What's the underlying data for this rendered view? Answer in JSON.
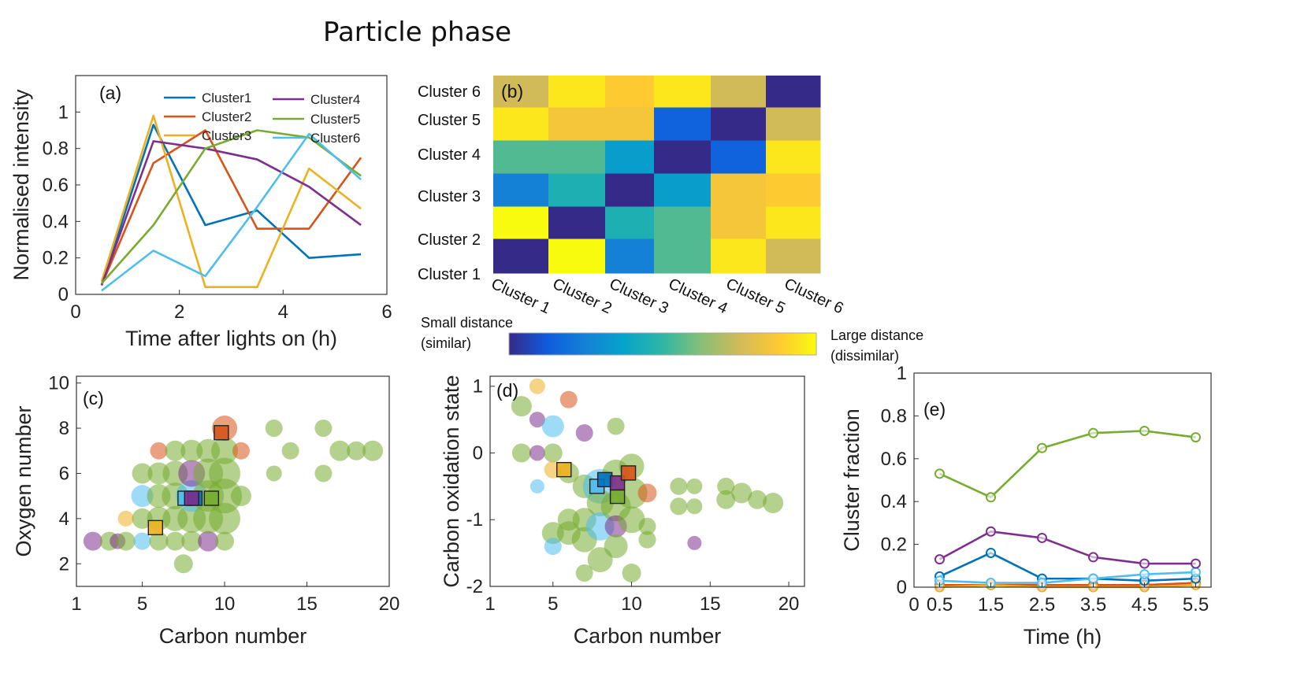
{
  "figure_title": "Particle phase",
  "colors": {
    "cluster1": "#0072BD",
    "cluster2": "#D95319",
    "cluster3": "#EDB120",
    "cluster4": "#7E2F8E",
    "cluster5": "#77AC30",
    "cluster6": "#4DBEEE",
    "parula": [
      "#352A87",
      "#0F5CDD",
      "#1481D6",
      "#06A4CA",
      "#2EB7A4",
      "#87BF77",
      "#D1BB59",
      "#FEC832",
      "#F9FB0E"
    ]
  },
  "chart_data": [
    {
      "id": "a",
      "panel_label": "(a)",
      "type": "line",
      "title": "",
      "xlabel": "Time after lights on (h)",
      "ylabel": "Normalised intensity",
      "xlim": [
        0,
        6
      ],
      "ylim": [
        0,
        1.2
      ],
      "xticks": [
        0,
        2,
        4,
        6
      ],
      "yticks": [
        0,
        0.2,
        0.4,
        0.6,
        0.8,
        1
      ],
      "ytick_labels": [
        "0",
        "0.2",
        "0.4",
        "0.6",
        "0.8",
        "1"
      ],
      "legend": "top-right",
      "x": [
        0.5,
        1.5,
        2.5,
        3.5,
        4.5,
        5.5
      ],
      "series": [
        {
          "name": "Cluster1",
          "color": "#0072BD",
          "values": [
            0.05,
            0.93,
            0.38,
            0.46,
            0.2,
            0.22
          ]
        },
        {
          "name": "Cluster2",
          "color": "#D95319",
          "values": [
            0.05,
            0.72,
            0.9,
            0.36,
            0.36,
            0.75
          ]
        },
        {
          "name": "Cluster3",
          "color": "#EDB120",
          "values": [
            0.07,
            0.98,
            0.04,
            0.04,
            0.69,
            0.47
          ]
        },
        {
          "name": "Cluster4",
          "color": "#7E2F8E",
          "values": [
            0.05,
            0.84,
            0.8,
            0.74,
            0.59,
            0.38
          ]
        },
        {
          "name": "Cluster5",
          "color": "#77AC30",
          "values": [
            0.06,
            0.38,
            0.8,
            0.9,
            0.86,
            0.65
          ]
        },
        {
          "name": "Cluster6",
          "color": "#4DBEEE",
          "values": [
            0.02,
            0.24,
            0.1,
            0.48,
            0.88,
            0.63
          ]
        }
      ]
    },
    {
      "id": "b",
      "panel_label": "(b)",
      "type": "heatmap",
      "title": "",
      "row_labels": [
        "Cluster 1",
        "Cluster 2",
        "Cluster 3",
        "Cluster 4",
        "Cluster 5",
        "Cluster 6"
      ],
      "col_labels": [
        "Cluster 1",
        "Cluster 2",
        "Cluster 3",
        "Cluster 4",
        "Cluster 5",
        "Cluster 6"
      ],
      "values": [
        [
          0.0,
          1.0,
          0.25,
          0.55,
          0.95,
          0.75
        ],
        [
          1.0,
          0.0,
          0.45,
          0.55,
          0.85,
          0.95
        ],
        [
          0.25,
          0.45,
          0.0,
          0.35,
          0.85,
          0.88
        ],
        [
          0.55,
          0.55,
          0.35,
          0.0,
          0.15,
          0.95
        ],
        [
          0.95,
          0.85,
          0.85,
          0.15,
          0.0,
          0.75
        ],
        [
          0.75,
          0.95,
          0.88,
          0.95,
          0.75,
          0.0
        ]
      ],
      "colorbar_low": "Small distance\n(similar)",
      "colorbar_high": "Large distance\n(dissimilar)"
    },
    {
      "id": "c",
      "panel_label": "(c)",
      "type": "scatter",
      "title": "",
      "xlabel": "Carbon number",
      "ylabel": "Oxygen number",
      "xlim": [
        1,
        20
      ],
      "ylim": [
        1,
        10.3
      ],
      "xticks": [
        1,
        5,
        10,
        15,
        20
      ],
      "yticks": [
        2,
        4,
        6,
        8,
        10
      ],
      "points": [
        {
          "x": 2,
          "y": 3,
          "c": 4,
          "s": 12
        },
        {
          "x": 3,
          "y": 3,
          "c": 5,
          "s": 12
        },
        {
          "x": 3.5,
          "y": 3,
          "c": 4,
          "s": 10
        },
        {
          "x": 4,
          "y": 3,
          "c": 5,
          "s": 12
        },
        {
          "x": 4,
          "y": 4,
          "c": 3,
          "s": 10
        },
        {
          "x": 5,
          "y": 3,
          "c": 6,
          "s": 11
        },
        {
          "x": 5,
          "y": 4,
          "c": 5,
          "s": 13
        },
        {
          "x": 5,
          "y": 5,
          "c": 6,
          "s": 14
        },
        {
          "x": 5,
          "y": 6,
          "c": 5,
          "s": 13
        },
        {
          "x": 6,
          "y": 4,
          "c": 5,
          "s": 15
        },
        {
          "x": 6,
          "y": 5,
          "c": 5,
          "s": 15
        },
        {
          "x": 6,
          "y": 6,
          "c": 5,
          "s": 14
        },
        {
          "x": 6,
          "y": 3,
          "c": 5,
          "s": 12
        },
        {
          "x": 6,
          "y": 7,
          "c": 2,
          "s": 11
        },
        {
          "x": 7,
          "y": 3,
          "c": 5,
          "s": 12
        },
        {
          "x": 7,
          "y": 4,
          "c": 5,
          "s": 16
        },
        {
          "x": 7,
          "y": 5,
          "c": 5,
          "s": 17
        },
        {
          "x": 7,
          "y": 6,
          "c": 5,
          "s": 16
        },
        {
          "x": 7,
          "y": 7,
          "c": 5,
          "s": 13
        },
        {
          "x": 7.5,
          "y": 2,
          "c": 5,
          "s": 12
        },
        {
          "x": 8,
          "y": 3,
          "c": 5,
          "s": 13
        },
        {
          "x": 8,
          "y": 4,
          "c": 5,
          "s": 18
        },
        {
          "x": 8,
          "y": 5,
          "c": 6,
          "s": 20
        },
        {
          "x": 8,
          "y": 6,
          "c": 4,
          "s": 17
        },
        {
          "x": 8,
          "y": 7,
          "c": 5,
          "s": 14
        },
        {
          "x": 9,
          "y": 3,
          "c": 4,
          "s": 13
        },
        {
          "x": 9,
          "y": 4,
          "c": 5,
          "s": 19
        },
        {
          "x": 9,
          "y": 5,
          "c": 5,
          "s": 20
        },
        {
          "x": 9,
          "y": 6,
          "c": 5,
          "s": 19
        },
        {
          "x": 9,
          "y": 7,
          "c": 5,
          "s": 15
        },
        {
          "x": 10,
          "y": 4,
          "c": 5,
          "s": 20
        },
        {
          "x": 10,
          "y": 5,
          "c": 5,
          "s": 22
        },
        {
          "x": 10,
          "y": 6,
          "c": 5,
          "s": 20
        },
        {
          "x": 10,
          "y": 7,
          "c": 5,
          "s": 17
        },
        {
          "x": 10,
          "y": 8,
          "c": 2,
          "s": 16
        },
        {
          "x": 10,
          "y": 3,
          "c": 5,
          "s": 12
        },
        {
          "x": 11,
          "y": 7,
          "c": 2,
          "s": 11
        },
        {
          "x": 11,
          "y": 5,
          "c": 5,
          "s": 13
        },
        {
          "x": 13,
          "y": 8,
          "c": 5,
          "s": 11
        },
        {
          "x": 13,
          "y": 6,
          "c": 5,
          "s": 10
        },
        {
          "x": 14,
          "y": 7,
          "c": 5,
          "s": 11
        },
        {
          "x": 16,
          "y": 8,
          "c": 5,
          "s": 11
        },
        {
          "x": 16,
          "y": 6,
          "c": 5,
          "s": 11
        },
        {
          "x": 17,
          "y": 7,
          "c": 5,
          "s": 13
        },
        {
          "x": 18,
          "y": 7,
          "c": 5,
          "s": 12
        },
        {
          "x": 19,
          "y": 7,
          "c": 5,
          "s": 13
        }
      ],
      "centroids": [
        {
          "x": 7.6,
          "y": 4.9,
          "c": 6
        },
        {
          "x": 8.2,
          "y": 4.9,
          "c": 1
        },
        {
          "x": 9.2,
          "y": 4.9,
          "c": 5
        },
        {
          "x": 9.8,
          "y": 7.8,
          "c": 2
        },
        {
          "x": 5.8,
          "y": 3.6,
          "c": 3
        },
        {
          "x": 8.0,
          "y": 4.9,
          "c": 4
        }
      ]
    },
    {
      "id": "d",
      "panel_label": "(d)",
      "type": "scatter",
      "title": "",
      "xlabel": "Carbon number",
      "ylabel": "Carbon oxidation state",
      "xlim": [
        1,
        21
      ],
      "ylim": [
        -2,
        1.15
      ],
      "xticks": [
        1,
        5,
        10,
        15,
        20
      ],
      "yticks": [
        -2,
        -1,
        0,
        1
      ],
      "points": [
        {
          "x": 3,
          "y": 0.7,
          "c": 5,
          "s": 13
        },
        {
          "x": 3,
          "y": 0,
          "c": 5,
          "s": 12
        },
        {
          "x": 4,
          "y": 1.0,
          "c": 3,
          "s": 10
        },
        {
          "x": 4,
          "y": 0.5,
          "c": 4,
          "s": 10
        },
        {
          "x": 4,
          "y": 0,
          "c": 4,
          "s": 10
        },
        {
          "x": 4,
          "y": -0.5,
          "c": 6,
          "s": 9
        },
        {
          "x": 5,
          "y": 0.4,
          "c": 6,
          "s": 14
        },
        {
          "x": 5,
          "y": 0,
          "c": 5,
          "s": 12
        },
        {
          "x": 5,
          "y": -0.25,
          "c": 3,
          "s": 11
        },
        {
          "x": 5,
          "y": -1.2,
          "c": 5,
          "s": 14
        },
        {
          "x": 5,
          "y": -1.4,
          "c": 6,
          "s": 11
        },
        {
          "x": 6,
          "y": 0.8,
          "c": 2,
          "s": 11
        },
        {
          "x": 6,
          "y": -0.3,
          "c": 5,
          "s": 13
        },
        {
          "x": 6,
          "y": -1.0,
          "c": 5,
          "s": 14
        },
        {
          "x": 6,
          "y": -1.2,
          "c": 5,
          "s": 15
        },
        {
          "x": 7,
          "y": 0.3,
          "c": 4,
          "s": 11
        },
        {
          "x": 7,
          "y": -0.5,
          "c": 5,
          "s": 15
        },
        {
          "x": 7,
          "y": -1.0,
          "c": 5,
          "s": 15
        },
        {
          "x": 7,
          "y": -1.3,
          "c": 5,
          "s": 16
        },
        {
          "x": 7,
          "y": -1.8,
          "c": 5,
          "s": 11
        },
        {
          "x": 8,
          "y": -0.5,
          "c": 6,
          "s": 22
        },
        {
          "x": 8,
          "y": -0.75,
          "c": 5,
          "s": 17
        },
        {
          "x": 8,
          "y": -1.1,
          "c": 6,
          "s": 18
        },
        {
          "x": 8,
          "y": -1.6,
          "c": 5,
          "s": 16
        },
        {
          "x": 9,
          "y": 0.4,
          "c": 5,
          "s": 11
        },
        {
          "x": 9,
          "y": -0.3,
          "c": 5,
          "s": 17
        },
        {
          "x": 9,
          "y": -0.8,
          "c": 5,
          "s": 19
        },
        {
          "x": 9,
          "y": -1.1,
          "c": 4,
          "s": 14
        },
        {
          "x": 9,
          "y": -1.4,
          "c": 5,
          "s": 15
        },
        {
          "x": 10,
          "y": -0.2,
          "c": 5,
          "s": 16
        },
        {
          "x": 10,
          "y": -0.6,
          "c": 5,
          "s": 20
        },
        {
          "x": 10,
          "y": -1.0,
          "c": 5,
          "s": 17
        },
        {
          "x": 10,
          "y": -1.8,
          "c": 5,
          "s": 12
        },
        {
          "x": 11,
          "y": -0.6,
          "c": 2,
          "s": 12
        },
        {
          "x": 11,
          "y": -1.1,
          "c": 5,
          "s": 11
        },
        {
          "x": 11,
          "y": -1.3,
          "c": 5,
          "s": 11
        },
        {
          "x": 13,
          "y": -0.5,
          "c": 5,
          "s": 11
        },
        {
          "x": 13,
          "y": -0.8,
          "c": 5,
          "s": 11
        },
        {
          "x": 14,
          "y": -0.5,
          "c": 5,
          "s": 10
        },
        {
          "x": 14,
          "y": -0.8,
          "c": 5,
          "s": 10
        },
        {
          "x": 14,
          "y": -1.35,
          "c": 4,
          "s": 9
        },
        {
          "x": 16,
          "y": -0.5,
          "c": 5,
          "s": 11
        },
        {
          "x": 16,
          "y": -0.7,
          "c": 5,
          "s": 12
        },
        {
          "x": 17,
          "y": -0.6,
          "c": 5,
          "s": 13
        },
        {
          "x": 18,
          "y": -0.7,
          "c": 5,
          "s": 12
        },
        {
          "x": 19,
          "y": -0.75,
          "c": 5,
          "s": 13
        }
      ],
      "centroids": [
        {
          "x": 5.7,
          "y": -0.25,
          "c": 3
        },
        {
          "x": 7.8,
          "y": -0.5,
          "c": 6
        },
        {
          "x": 8.3,
          "y": -0.4,
          "c": 1
        },
        {
          "x": 9.1,
          "y": -0.65,
          "c": 5
        },
        {
          "x": 9.1,
          "y": -0.45,
          "c": 4
        },
        {
          "x": 9.8,
          "y": -0.3,
          "c": 2
        }
      ]
    },
    {
      "id": "e",
      "panel_label": "(e)",
      "type": "line",
      "title": "",
      "xlabel": "Time (h)",
      "ylabel": "Cluster fraction",
      "xlim": [
        0,
        5.8
      ],
      "ylim": [
        0,
        1
      ],
      "xticks": [
        0,
        0.5,
        1.5,
        2.5,
        3.5,
        4.5,
        5.5
      ],
      "yticks": [
        0,
        0.2,
        0.4,
        0.6,
        0.8,
        1
      ],
      "ytick_labels": [
        "0",
        "0.2",
        "0.4",
        "0.6",
        "0.8",
        "1"
      ],
      "markers": "circle",
      "x": [
        0.5,
        1.5,
        2.5,
        3.5,
        4.5,
        5.5
      ],
      "series": [
        {
          "color": "#0072BD",
          "values": [
            0.05,
            0.16,
            0.04,
            0.04,
            0.03,
            0.04
          ]
        },
        {
          "color": "#D95319",
          "values": [
            0.01,
            0.01,
            0.01,
            0.01,
            0.01,
            0.02
          ]
        },
        {
          "color": "#EDB120",
          "values": [
            0.0,
            0.01,
            0.0,
            0.0,
            0.0,
            0.01
          ]
        },
        {
          "color": "#7E2F8E",
          "values": [
            0.13,
            0.26,
            0.23,
            0.14,
            0.11,
            0.11
          ]
        },
        {
          "color": "#77AC30",
          "values": [
            0.53,
            0.42,
            0.65,
            0.72,
            0.73,
            0.7
          ]
        },
        {
          "color": "#4DBEEE",
          "values": [
            0.03,
            0.02,
            0.02,
            0.04,
            0.06,
            0.07
          ]
        }
      ]
    }
  ]
}
